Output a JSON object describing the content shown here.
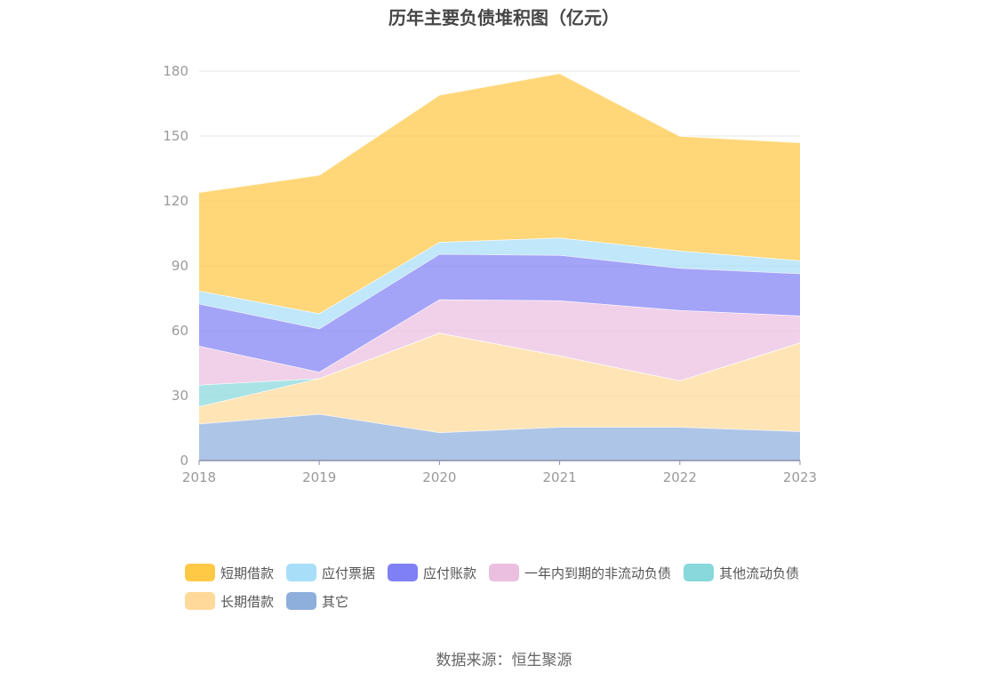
{
  "title": "历年主要负债堆积图（亿元）",
  "source": "数据来源：恒生聚源",
  "chart_data": {
    "type": "area",
    "stacked": true,
    "title": "历年主要负债堆积图（亿元）",
    "x": [
      "2018",
      "2019",
      "2020",
      "2021",
      "2022",
      "2023"
    ],
    "y_ticks": [
      "0",
      "30",
      "60",
      "90",
      "120",
      "150",
      "180"
    ],
    "ylim": [
      0,
      180
    ],
    "grid": true,
    "legend_position": "bottom",
    "series": [
      {
        "name": "其它",
        "color": "#8eaedc",
        "values": [
          17,
          21.5,
          13,
          15.5,
          15.5,
          13.5
        ]
      },
      {
        "name": "长期借款",
        "color": "#ffd99a",
        "values": [
          8,
          16.5,
          46,
          33,
          21.5,
          41
        ]
      },
      {
        "name": "其他流动负债",
        "color": "#88d8dc",
        "values": [
          10,
          0,
          0,
          0,
          0,
          0
        ]
      },
      {
        "name": "一年内到期的非流动负债",
        "color": "#ebbfe0",
        "values": [
          18,
          3,
          15.5,
          25.5,
          32.5,
          12.5
        ]
      },
      {
        "name": "应付账款",
        "color": "#7f80f5",
        "values": [
          19.5,
          20,
          21,
          21,
          19.5,
          19.5
        ]
      },
      {
        "name": "应付票据",
        "color": "#a8def8",
        "values": [
          6,
          7,
          5.5,
          8,
          8,
          6
        ]
      },
      {
        "name": "短期借款",
        "color": "#ffc845",
        "values": [
          45.5,
          64,
          68,
          76,
          53,
          54.5
        ]
      }
    ]
  },
  "legend": {
    "rows": [
      [
        {
          "label": "短期借款",
          "color": "#ffc845"
        },
        {
          "label": "应付票据",
          "color": "#a8def8"
        },
        {
          "label": "应付账款",
          "color": "#7f80f5"
        },
        {
          "label": "一年内到期的非流动负债",
          "color": "#ebbfe0"
        },
        {
          "label": "其他流动负债",
          "color": "#88d8dc"
        }
      ],
      [
        {
          "label": "长期借款",
          "color": "#ffd99a"
        },
        {
          "label": "其它",
          "color": "#8eaedc"
        }
      ]
    ]
  }
}
